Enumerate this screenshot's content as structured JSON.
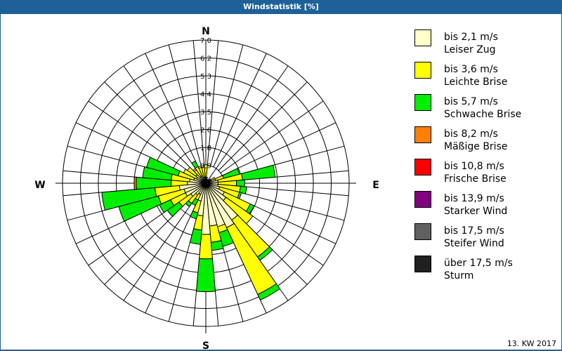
{
  "header": {
    "title": "Windstatistik [%]"
  },
  "compass": {
    "n": "N",
    "e": "E",
    "s": "S",
    "w": "W"
  },
  "legend": [
    {
      "range": "bis 2,1 m/s",
      "name": "Leiser Zug",
      "color": "#ffffc8"
    },
    {
      "range": "bis 3,6 m/s",
      "name": "Leichte Brise",
      "color": "#ffff00"
    },
    {
      "range": "bis 5,7 m/s",
      "name": "Schwache Brise",
      "color": "#00ee00"
    },
    {
      "range": "bis 8,2 m/s",
      "name": "Mäßige Brise",
      "color": "#ff8000"
    },
    {
      "range": "bis 10,8 m/s",
      "name": "Frische Brise",
      "color": "#ff0000"
    },
    {
      "range": "bis 13,9 m/s",
      "name": "Starker Wind",
      "color": "#800080"
    },
    {
      "range": "bis 17,5 m/s",
      "name": "Steifer Wind",
      "color": "#606060"
    },
    {
      "range": "über 17,5 m/s",
      "name": "Sturm",
      "color": "#202020"
    }
  ],
  "footer": {
    "label": "13. KW 2017"
  },
  "chart_data": {
    "type": "polar-stacked-bar (wind rose)",
    "title": "Windstatistik [%]",
    "radial_ticks": [
      "0,9",
      "1,8",
      "2,6",
      "3,5",
      "4,4",
      "5,3",
      "6,2",
      "7,0"
    ],
    "radial_max": 7.0,
    "sector_width_deg": 10,
    "series_names": [
      "bis 2,1 m/s",
      "bis 3,6 m/s",
      "bis 5,7 m/s",
      "bis 8,2 m/s"
    ],
    "series_colors": [
      "#ffffc8",
      "#ffff00",
      "#00ee00",
      "#ff8000"
    ],
    "note": "cumulative radii (%) per direction, stacked from calm outward",
    "sectors": [
      {
        "dir": 0,
        "cum": [
          0.2,
          0.9,
          0.9,
          0.9
        ]
      },
      {
        "dir": 10,
        "cum": [
          0.2,
          0.3,
          0.3,
          0.3
        ]
      },
      {
        "dir": 20,
        "cum": [
          0.2,
          0.2,
          0.2,
          0.2
        ]
      },
      {
        "dir": 30,
        "cum": [
          0.2,
          0.2,
          0.2,
          0.2
        ]
      },
      {
        "dir": 40,
        "cum": [
          0.2,
          0.2,
          0.2,
          0.2
        ]
      },
      {
        "dir": 50,
        "cum": [
          0.2,
          0.3,
          0.3,
          0.3
        ]
      },
      {
        "dir": 60,
        "cum": [
          0.3,
          0.5,
          0.5,
          0.5
        ]
      },
      {
        "dir": 70,
        "cum": [
          0.5,
          0.9,
          1.7,
          1.7
        ]
      },
      {
        "dir": 80,
        "cum": [
          0.6,
          1.8,
          3.4,
          3.4
        ]
      },
      {
        "dir": 90,
        "cum": [
          0.6,
          1.5,
          1.9,
          1.9
        ]
      },
      {
        "dir": 100,
        "cum": [
          0.6,
          1.7,
          2.0,
          2.0
        ]
      },
      {
        "dir": 110,
        "cum": [
          0.7,
          1.7,
          1.8,
          1.8
        ]
      },
      {
        "dir": 120,
        "cum": [
          1.0,
          2.4,
          2.6,
          2.6
        ]
      },
      {
        "dir": 130,
        "cum": [
          1.2,
          2.8,
          2.8,
          2.8
        ]
      },
      {
        "dir": 140,
        "cum": [
          2.2,
          4.4,
          4.6,
          4.6
        ]
      },
      {
        "dir": 150,
        "cum": [
          2.4,
          6.0,
          6.3,
          6.3
        ]
      },
      {
        "dir": 160,
        "cum": [
          2.2,
          2.5,
          3.2,
          3.2
        ]
      },
      {
        "dir": 170,
        "cum": [
          2.1,
          2.9,
          3.3,
          3.3
        ]
      },
      {
        "dir": 180,
        "cum": [
          2.5,
          3.7,
          5.3,
          5.3
        ]
      },
      {
        "dir": 190,
        "cum": [
          1.6,
          2.3,
          3.0,
          3.0
        ]
      },
      {
        "dir": 200,
        "cum": [
          0.9,
          1.5,
          1.8,
          1.8
        ]
      },
      {
        "dir": 210,
        "cum": [
          0.6,
          0.9,
          1.2,
          1.2
        ]
      },
      {
        "dir": 220,
        "cum": [
          0.7,
          1.2,
          1.4,
          1.4
        ]
      },
      {
        "dir": 230,
        "cum": [
          0.9,
          1.6,
          2.3,
          2.3
        ]
      },
      {
        "dir": 240,
        "cum": [
          1.1,
          1.9,
          2.5,
          2.5
        ]
      },
      {
        "dir": 250,
        "cum": [
          1.1,
          2.4,
          4.4,
          4.4
        ]
      },
      {
        "dir": 260,
        "cum": [
          1.3,
          2.5,
          5.1,
          5.1
        ]
      },
      {
        "dir": 270,
        "cum": [
          0.9,
          1.7,
          3.4,
          3.5
        ]
      },
      {
        "dir": 280,
        "cum": [
          0.8,
          1.7,
          3.1,
          3.1
        ]
      },
      {
        "dir": 290,
        "cum": [
          0.6,
          1.4,
          3.0,
          3.0
        ]
      },
      {
        "dir": 300,
        "cum": [
          0.5,
          1.2,
          1.2,
          1.2
        ]
      },
      {
        "dir": 310,
        "cum": [
          0.6,
          1.1,
          1.1,
          1.1
        ]
      },
      {
        "dir": 320,
        "cum": [
          0.4,
          0.8,
          0.8,
          0.8
        ]
      },
      {
        "dir": 330,
        "cum": [
          0.4,
          0.9,
          1.2,
          1.2
        ]
      },
      {
        "dir": 340,
        "cum": [
          0.3,
          0.8,
          0.8,
          0.8
        ]
      },
      {
        "dir": 350,
        "cum": [
          0.3,
          0.8,
          0.8,
          0.8
        ]
      }
    ]
  }
}
